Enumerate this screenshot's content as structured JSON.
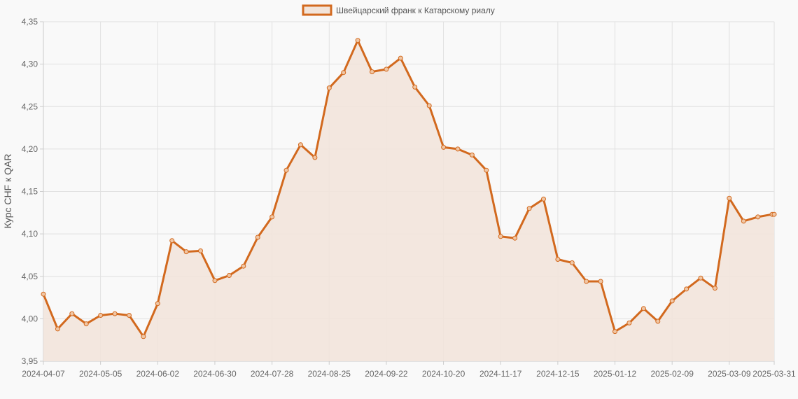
{
  "chart_data": {
    "type": "line",
    "ylabel": "Курс CHF к QAR",
    "xlabel": "",
    "title": "",
    "legend": {
      "position": "top-center"
    },
    "grid": true,
    "ylim": [
      3.95,
      4.35
    ],
    "yticks": [
      "3,95",
      "4,00",
      "4,05",
      "4,10",
      "4,15",
      "4,20",
      "4,25",
      "4,30",
      "4,35"
    ],
    "xticks": [
      "2024-04-07",
      "2024-05-05",
      "2024-06-02",
      "2024-06-30",
      "2024-07-28",
      "2024-08-25",
      "2024-09-22",
      "2024-10-20",
      "2024-11-17",
      "2024-12-15",
      "2025-01-12",
      "2025-02-09",
      "2025-03-09",
      "2025-03-31"
    ],
    "x": [
      "2024-04-07",
      "2024-04-14",
      "2024-04-21",
      "2024-04-28",
      "2024-05-05",
      "2024-05-12",
      "2024-05-19",
      "2024-05-26",
      "2024-06-02",
      "2024-06-09",
      "2024-06-16",
      "2024-06-23",
      "2024-06-30",
      "2024-07-07",
      "2024-07-14",
      "2024-07-21",
      "2024-07-28",
      "2024-08-04",
      "2024-08-11",
      "2024-08-18",
      "2024-08-25",
      "2024-09-01",
      "2024-09-08",
      "2024-09-15",
      "2024-09-22",
      "2024-09-29",
      "2024-10-06",
      "2024-10-13",
      "2024-10-20",
      "2024-10-27",
      "2024-11-03",
      "2024-11-10",
      "2024-11-17",
      "2024-11-24",
      "2024-12-01",
      "2024-12-08",
      "2024-12-15",
      "2024-12-22",
      "2024-12-29",
      "2025-01-05",
      "2025-01-12",
      "2025-01-19",
      "2025-01-26",
      "2025-02-02",
      "2025-02-09",
      "2025-02-16",
      "2025-02-23",
      "2025-03-02",
      "2025-03-09",
      "2025-03-16",
      "2025-03-23",
      "2025-03-30",
      "2025-03-31"
    ],
    "series": [
      {
        "name": "Швейцарский франк к Катарскому риалу",
        "color": "#d2691e",
        "fill": "#f2e4da",
        "values": [
          4.029,
          3.988,
          4.006,
          3.994,
          4.004,
          4.006,
          4.004,
          3.979,
          4.018,
          4.092,
          4.079,
          4.08,
          4.045,
          4.051,
          4.062,
          4.096,
          4.12,
          4.175,
          4.205,
          4.19,
          4.272,
          4.29,
          4.328,
          4.291,
          4.294,
          4.307,
          4.273,
          4.251,
          4.202,
          4.2,
          4.193,
          4.175,
          4.097,
          4.095,
          4.13,
          4.141,
          4.07,
          4.066,
          4.044,
          4.044,
          3.985,
          3.995,
          4.012,
          3.997,
          4.021,
          4.035,
          4.048,
          4.036,
          4.142,
          4.115,
          4.12,
          4.123,
          4.123
        ]
      }
    ]
  }
}
